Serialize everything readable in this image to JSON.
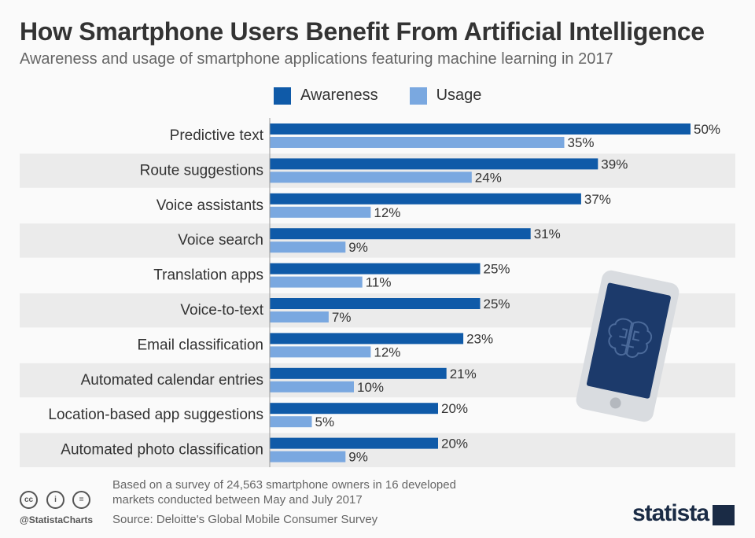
{
  "header": {
    "title": "How Smartphone Users Benefit From Artificial Intelligence",
    "subtitle": "Awareness and usage of smartphone applications featuring machine learning in 2017"
  },
  "chart_data": {
    "type": "bar",
    "orientation": "horizontal",
    "categories": [
      "Predictive text",
      "Route suggestions",
      "Voice assistants",
      "Voice search",
      "Translation apps",
      "Voice-to-text",
      "Email classification",
      "Automated calendar entries",
      "Location-based app suggestions",
      "Automated photo classification"
    ],
    "series": [
      {
        "name": "Awareness",
        "color": "#0f5aa8",
        "values": [
          50,
          39,
          37,
          31,
          25,
          25,
          23,
          21,
          20,
          20
        ]
      },
      {
        "name": "Usage",
        "color": "#7aa8e0",
        "values": [
          35,
          24,
          12,
          9,
          11,
          7,
          12,
          10,
          5,
          9
        ]
      }
    ],
    "value_suffix": "%",
    "xlim": [
      0,
      50
    ],
    "legend_position": "top",
    "grid": false
  },
  "footer": {
    "note_line1": "Based on a survey of 24,563 smartphone owners in 16 developed",
    "note_line2": "markets conducted between May and July 2017",
    "source": "Source: Deloitte's Global Mobile Consumer Survey",
    "handle": "@StatistaCharts",
    "cc_labels": [
      "cc",
      "i",
      "="
    ],
    "brand": "statista"
  },
  "colors": {
    "band": "#ebebeb",
    "title": "#333333",
    "phone_screen": "#1c3a6b",
    "phone_body": "#d9dce0"
  }
}
